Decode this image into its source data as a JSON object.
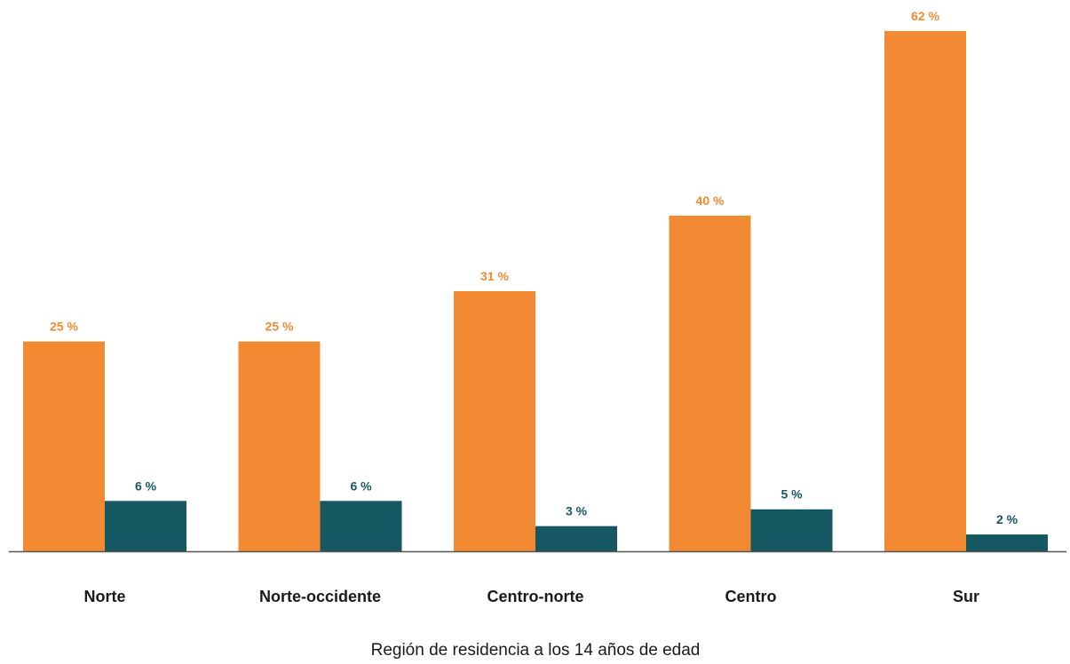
{
  "chart_data": {
    "type": "bar",
    "categories": [
      "Norte",
      "Norte-occidente",
      "Centro-norte",
      "Centro",
      "Sur"
    ],
    "series": [
      {
        "values": [
          25,
          25,
          31,
          40,
          62
        ],
        "labels": [
          "25 %",
          "25 %",
          "31 %",
          "40 %",
          "62 %"
        ],
        "color": "#f28a33"
      },
      {
        "values": [
          6,
          6,
          3,
          5,
          2
        ],
        "labels": [
          "6 %",
          "6 %",
          "3 %",
          "5 %",
          "2 %"
        ],
        "color": "#165862"
      }
    ],
    "title": "",
    "xlabel": "Región de residencia a los 14 años de edad",
    "ylabel": "",
    "ylim": [
      0,
      62
    ],
    "grid": false,
    "legend": "none",
    "axis_color": "#555555",
    "text_color": "#1a1a1a"
  }
}
